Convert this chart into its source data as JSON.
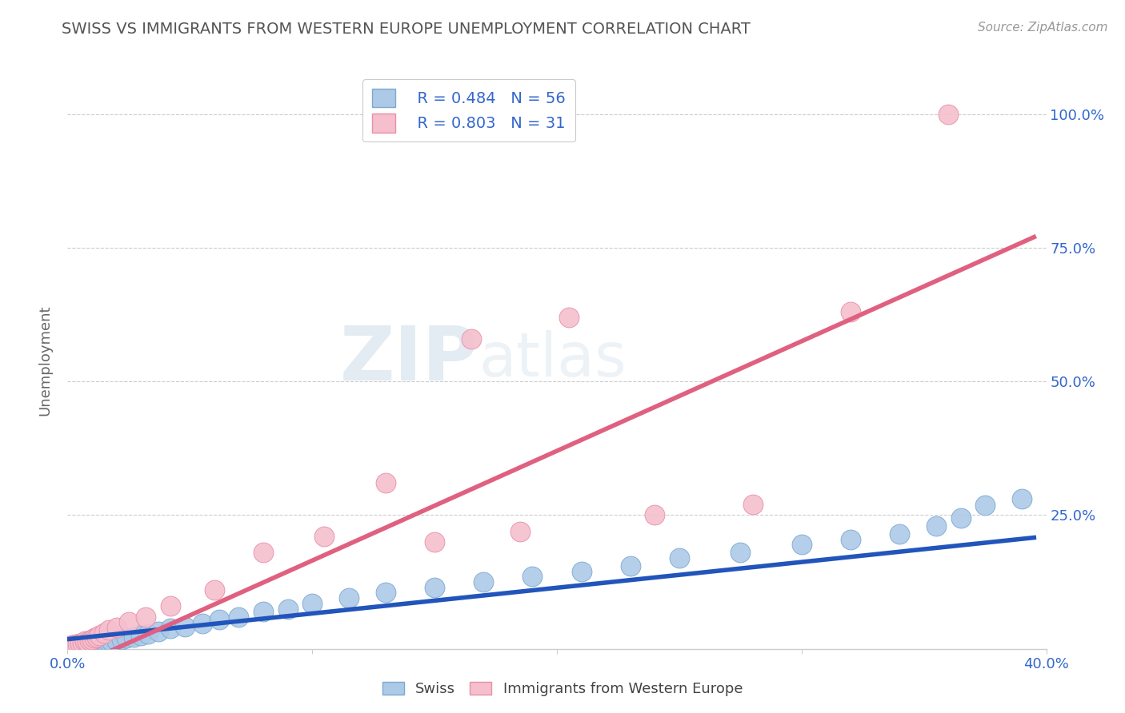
{
  "title": "SWISS VS IMMIGRANTS FROM WESTERN EUROPE UNEMPLOYMENT CORRELATION CHART",
  "source": "Source: ZipAtlas.com",
  "ylabel": "Unemployment",
  "ytick_positions": [
    0.25,
    0.5,
    0.75,
    1.0
  ],
  "ytick_labels": [
    "25.0%",
    "50.0%",
    "75.0%",
    "100.0%"
  ],
  "xlim": [
    0.0,
    0.4
  ],
  "ylim": [
    0.0,
    1.08
  ],
  "swiss_color": "#adc9e8",
  "swiss_edge_color": "#7aaad0",
  "swiss_line_color": "#2255bb",
  "immigrants_color": "#f5bfce",
  "immigrants_edge_color": "#e890a8",
  "immigrants_line_color": "#e06080",
  "legend_r_swiss": "R = 0.484",
  "legend_n_swiss": "N = 56",
  "legend_r_imm": "R = 0.803",
  "legend_n_imm": "N = 31",
  "swiss_x": [
    0.001,
    0.002,
    0.002,
    0.003,
    0.003,
    0.004,
    0.004,
    0.005,
    0.005,
    0.006,
    0.006,
    0.007,
    0.007,
    0.008,
    0.008,
    0.009,
    0.01,
    0.011,
    0.012,
    0.013,
    0.014,
    0.015,
    0.016,
    0.017,
    0.018,
    0.02,
    0.022,
    0.024,
    0.027,
    0.03,
    0.033,
    0.037,
    0.042,
    0.048,
    0.055,
    0.062,
    0.07,
    0.08,
    0.09,
    0.1,
    0.115,
    0.13,
    0.15,
    0.17,
    0.19,
    0.21,
    0.23,
    0.25,
    0.275,
    0.3,
    0.32,
    0.34,
    0.355,
    0.365,
    0.375,
    0.39
  ],
  "swiss_y": [
    0.003,
    0.005,
    0.006,
    0.004,
    0.007,
    0.005,
    0.008,
    0.006,
    0.009,
    0.005,
    0.007,
    0.008,
    0.01,
    0.007,
    0.009,
    0.006,
    0.008,
    0.01,
    0.012,
    0.009,
    0.011,
    0.013,
    0.01,
    0.012,
    0.014,
    0.015,
    0.018,
    0.02,
    0.022,
    0.025,
    0.028,
    0.032,
    0.038,
    0.042,
    0.048,
    0.055,
    0.06,
    0.07,
    0.075,
    0.085,
    0.095,
    0.105,
    0.115,
    0.125,
    0.135,
    0.145,
    0.155,
    0.17,
    0.18,
    0.195,
    0.205,
    0.215,
    0.23,
    0.245,
    0.268,
    0.28
  ],
  "imm_x": [
    0.001,
    0.002,
    0.003,
    0.004,
    0.005,
    0.006,
    0.007,
    0.008,
    0.009,
    0.01,
    0.011,
    0.012,
    0.013,
    0.015,
    0.017,
    0.02,
    0.025,
    0.032,
    0.042,
    0.06,
    0.08,
    0.105,
    0.13,
    0.15,
    0.165,
    0.185,
    0.205,
    0.24,
    0.28,
    0.32,
    0.36
  ],
  "imm_y": [
    0.005,
    0.007,
    0.008,
    0.009,
    0.01,
    0.012,
    0.014,
    0.013,
    0.016,
    0.018,
    0.02,
    0.022,
    0.025,
    0.03,
    0.035,
    0.04,
    0.05,
    0.06,
    0.08,
    0.11,
    0.18,
    0.21,
    0.31,
    0.2,
    0.58,
    0.22,
    0.62,
    0.25,
    0.27,
    0.63,
    1.0
  ],
  "watermark_zip": "ZIP",
  "watermark_atlas": "atlas",
  "background_color": "#ffffff",
  "grid_color": "#cccccc",
  "title_color": "#555555",
  "tick_color": "#3366cc",
  "source_color": "#999999"
}
